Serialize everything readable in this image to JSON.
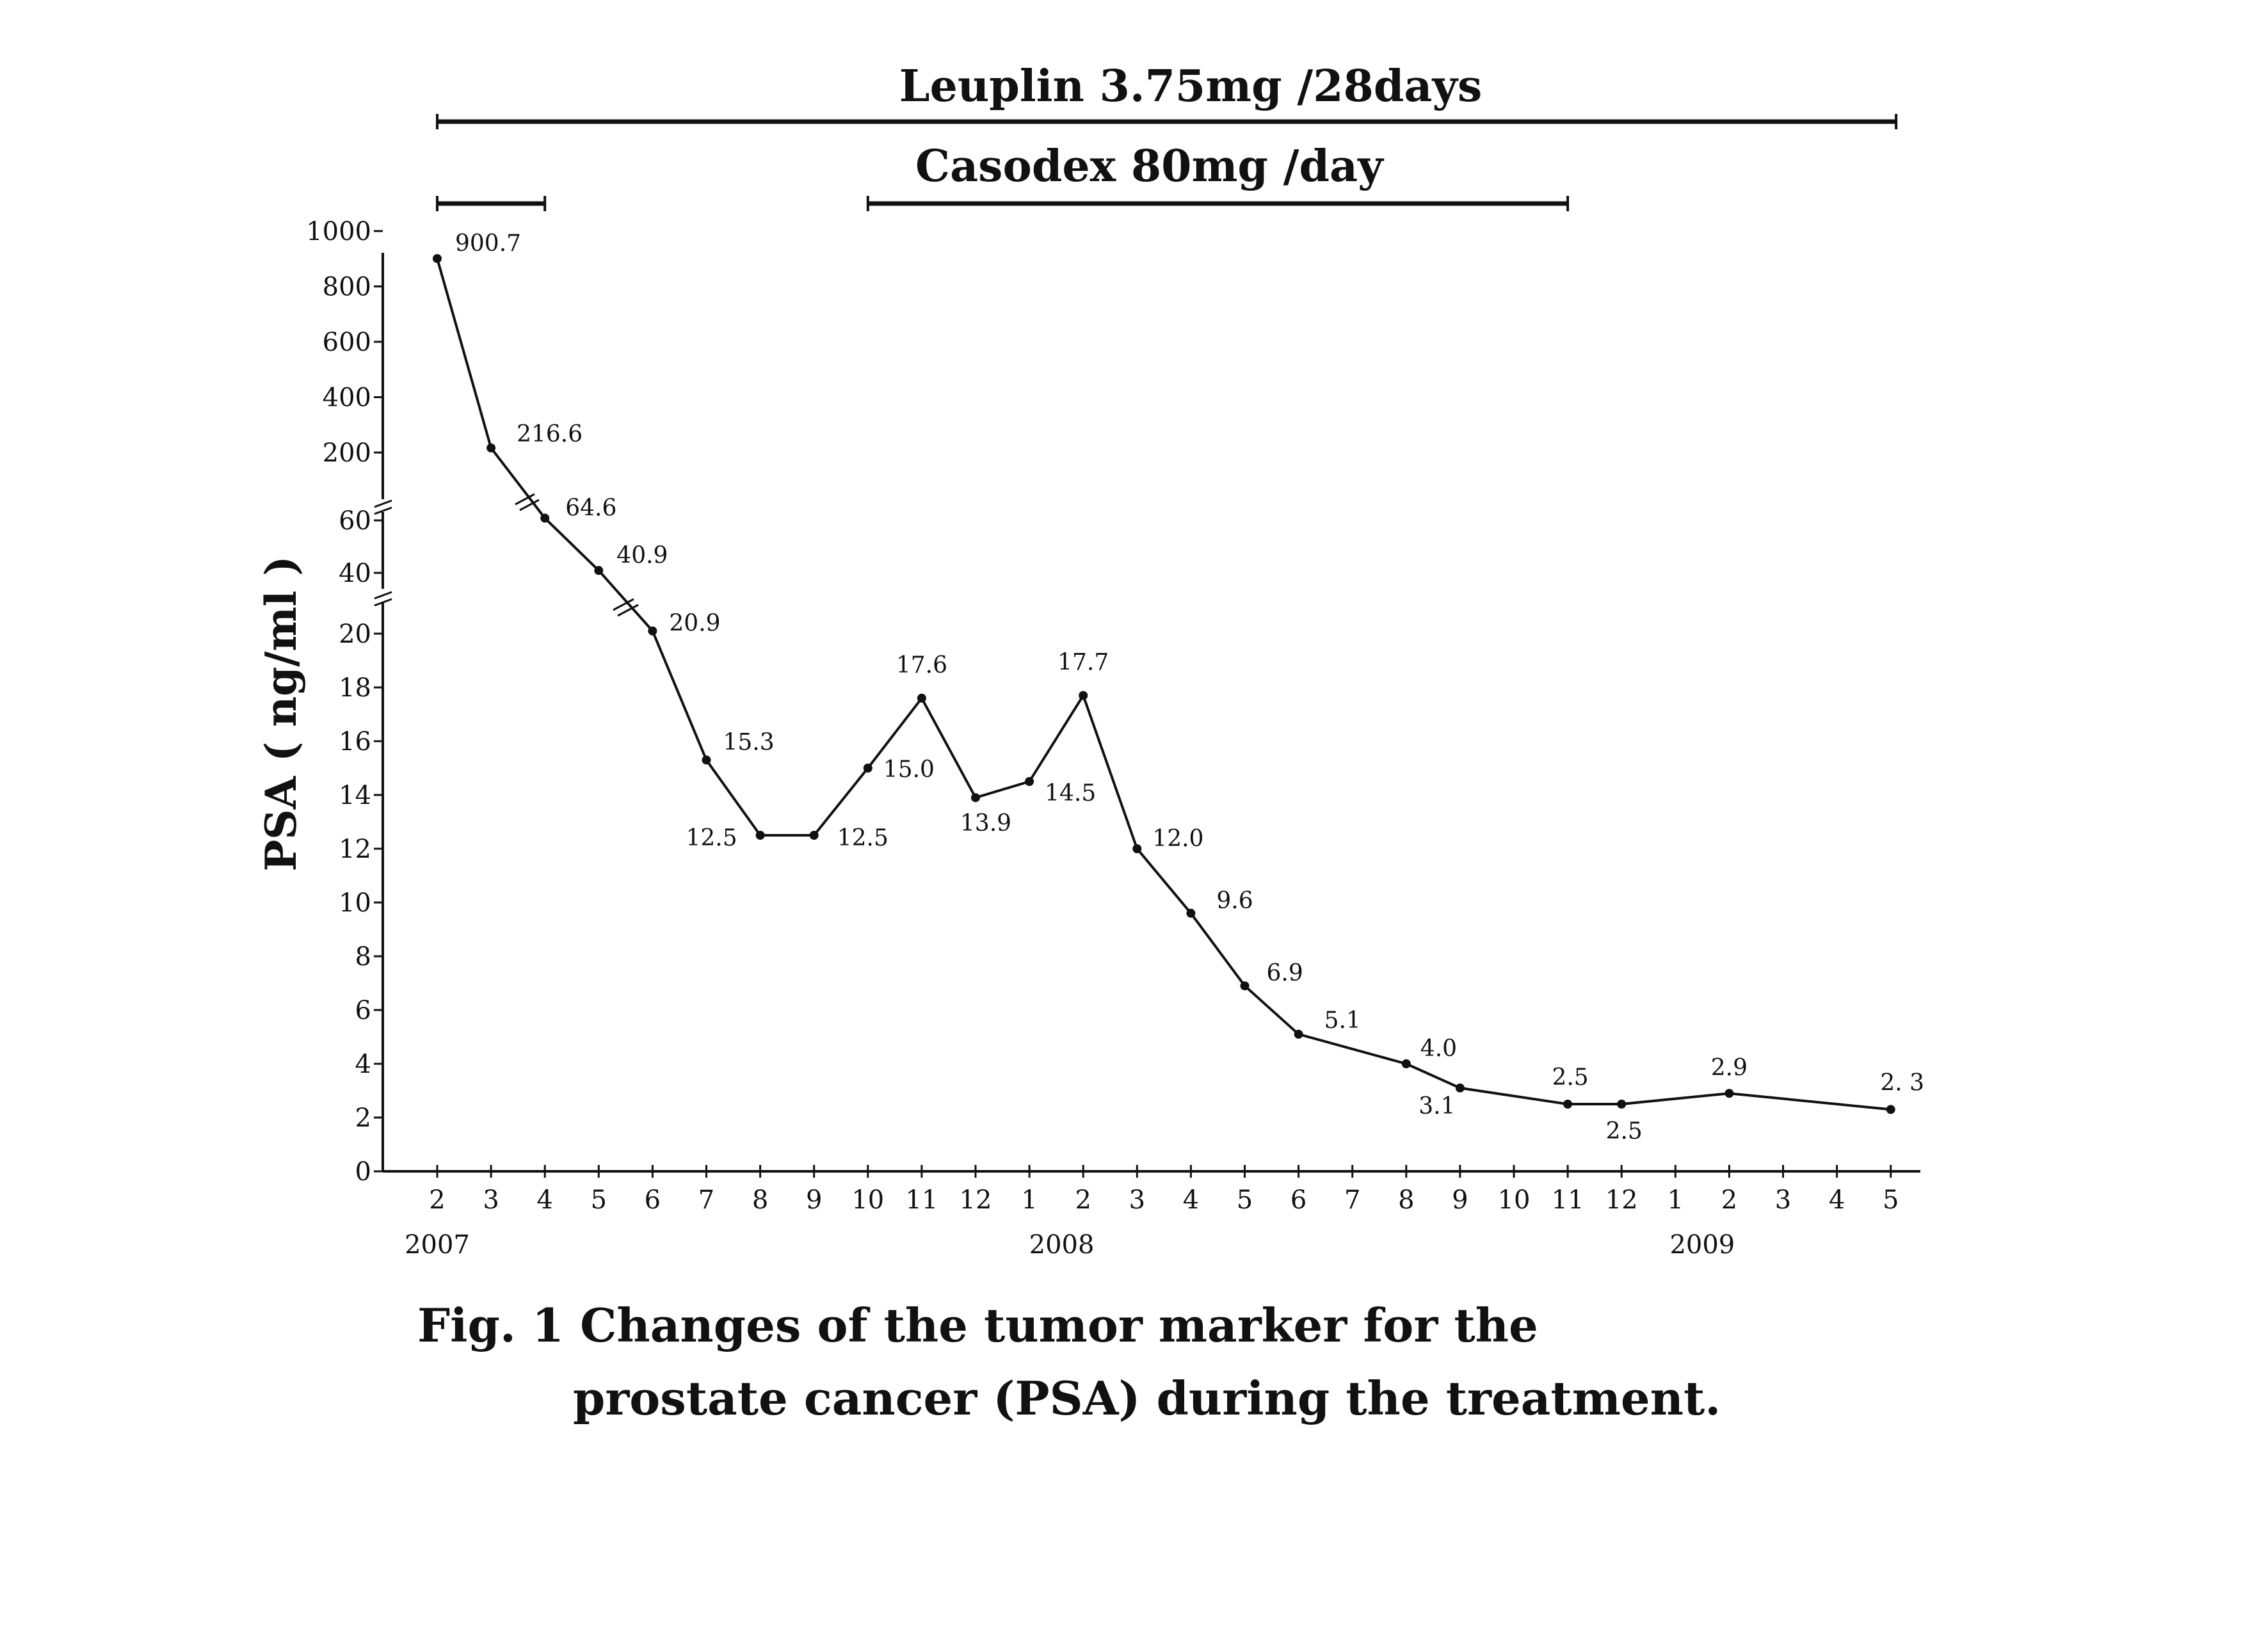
{
  "chart_data": {
    "type": "line",
    "ylabel": "PSA ( ng/ml )",
    "caption_line1": "Fig. 1 Changes of the tumor marker for the",
    "caption_line2": "prostate cancer (PSA) during the treatment.",
    "x": [
      "2",
      "3",
      "4",
      "5",
      "6",
      "7",
      "8",
      "9",
      "10",
      "11",
      "12",
      "1",
      "2",
      "3",
      "4",
      "5",
      "6",
      "7",
      "8",
      "9",
      "10",
      "11",
      "12",
      "1",
      "2",
      "3",
      "4",
      "5"
    ],
    "years": [
      {
        "label": "2007",
        "index": 0
      },
      {
        "label": "2008",
        "index": 11.6
      },
      {
        "label": "2009",
        "index": 23.5
      }
    ],
    "y_ticks": [
      {
        "label": "1000",
        "value": 1000
      },
      {
        "label": "800",
        "value": 800
      },
      {
        "label": "600",
        "value": 600
      },
      {
        "label": "400",
        "value": 400
      },
      {
        "label": "200",
        "value": 200
      },
      {
        "label": "60",
        "value": 60
      },
      {
        "label": "40",
        "value": 40
      },
      {
        "label": "20",
        "value": 20
      },
      {
        "label": "18",
        "value": 18
      },
      {
        "label": "16",
        "value": 16
      },
      {
        "label": "14",
        "value": 14
      },
      {
        "label": "12",
        "value": 12
      },
      {
        "label": "10",
        "value": 10
      },
      {
        "label": "8",
        "value": 8
      },
      {
        "label": "6",
        "value": 6
      },
      {
        "label": "4",
        "value": 4
      },
      {
        "label": "2",
        "value": 2
      },
      {
        "label": "0",
        "value": 0
      }
    ],
    "y_scale": "broken axis: 0-20 linear, 20-40 break, 40-60, 60-200 break, 200-1000",
    "series": [
      {
        "points": [
          {
            "index": 0,
            "value": 900.7,
            "label": "900.7"
          },
          {
            "index": 1,
            "value": 216.6,
            "label": "216.6"
          },
          {
            "index": 2,
            "value": 64.6,
            "label": "64.6"
          },
          {
            "index": 3,
            "value": 40.9,
            "label": "40.9"
          },
          {
            "index": 4,
            "value": 20.9,
            "label": "20.9"
          },
          {
            "index": 5,
            "value": 15.3,
            "label": "15.3"
          },
          {
            "index": 6,
            "value": 12.5,
            "label": "12.5"
          },
          {
            "index": 7,
            "value": 12.5,
            "label": "12.5"
          },
          {
            "index": 8,
            "value": 15.0,
            "label": "15.0"
          },
          {
            "index": 9,
            "value": 17.6,
            "label": "17.6"
          },
          {
            "index": 10,
            "value": 13.9,
            "label": "13.9"
          },
          {
            "index": 11,
            "value": 14.5,
            "label": "14.5"
          },
          {
            "index": 12,
            "value": 17.7,
            "label": "17.7"
          },
          {
            "index": 13,
            "value": 12.0,
            "label": "12.0"
          },
          {
            "index": 14,
            "value": 9.6,
            "label": "9.6"
          },
          {
            "index": 15,
            "value": 6.9,
            "label": "6.9"
          },
          {
            "index": 16,
            "value": 5.1,
            "label": "5.1"
          },
          {
            "index": 18,
            "value": 4.0,
            "label": "4.0"
          },
          {
            "index": 19,
            "value": 3.1,
            "label": "3.1"
          },
          {
            "index": 21,
            "value": 2.5,
            "label": "2.5"
          },
          {
            "index": 22,
            "value": 2.5,
            "label": "2.5"
          },
          {
            "index": 24,
            "value": 2.9,
            "label": "2.9"
          },
          {
            "index": 27,
            "value": 2.3,
            "label": "2. 3"
          }
        ]
      }
    ],
    "treatments": [
      {
        "label": "Leuplin 3.75mg /28days",
        "segments": [
          [
            0,
            27.1
          ]
        ]
      },
      {
        "label": "Casodex 80mg /day",
        "segments": [
          [
            0,
            2
          ],
          [
            8,
            21
          ]
        ]
      }
    ],
    "grid": false,
    "legend": "none"
  }
}
